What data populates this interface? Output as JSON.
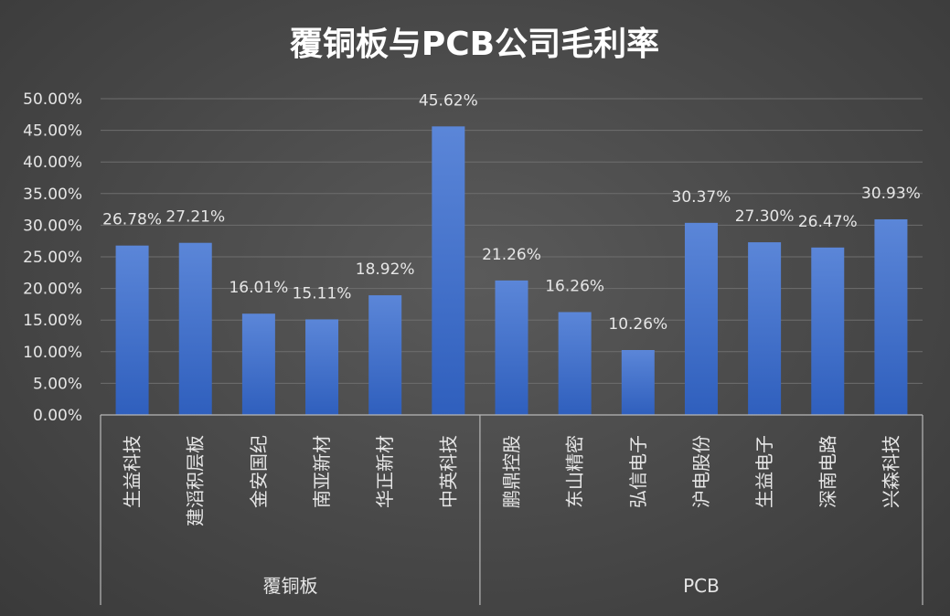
{
  "chart_data": {
    "type": "bar",
    "title": "覆铜板与PCB公司毛利率",
    "categories": [
      "生益科技",
      "建滔积层板",
      "金安国纪",
      "南亚新材",
      "华正新材",
      "中英科技",
      "鹏鼎控股",
      "东山精密",
      "弘信电子",
      "沪电股份",
      "生益电子",
      "深南电路",
      "兴森科技"
    ],
    "groups": [
      {
        "name": "覆铜板",
        "count": 6
      },
      {
        "name": "PCB",
        "count": 7
      }
    ],
    "values": [
      26.78,
      27.21,
      16.01,
      15.11,
      18.92,
      45.62,
      21.26,
      16.26,
      10.26,
      30.37,
      27.3,
      26.47,
      30.93
    ],
    "value_labels": [
      "26.78%",
      "27.21%",
      "16.01%",
      "15.11%",
      "18.92%",
      "45.62%",
      "21.26%",
      "16.26%",
      "10.26%",
      "30.37%",
      "27.30%",
      "26.47%",
      "30.93%"
    ],
    "yticks": [
      "0.00%",
      "5.00%",
      "10.00%",
      "15.00%",
      "20.00%",
      "25.00%",
      "30.00%",
      "35.00%",
      "40.00%",
      "45.00%",
      "50.00%"
    ],
    "ylim": [
      0,
      50
    ],
    "xlabel": "",
    "ylabel": "",
    "grid": true,
    "colors": {
      "bar_top": "#5b86d8",
      "bar_bottom": "#2f5fbd"
    }
  }
}
